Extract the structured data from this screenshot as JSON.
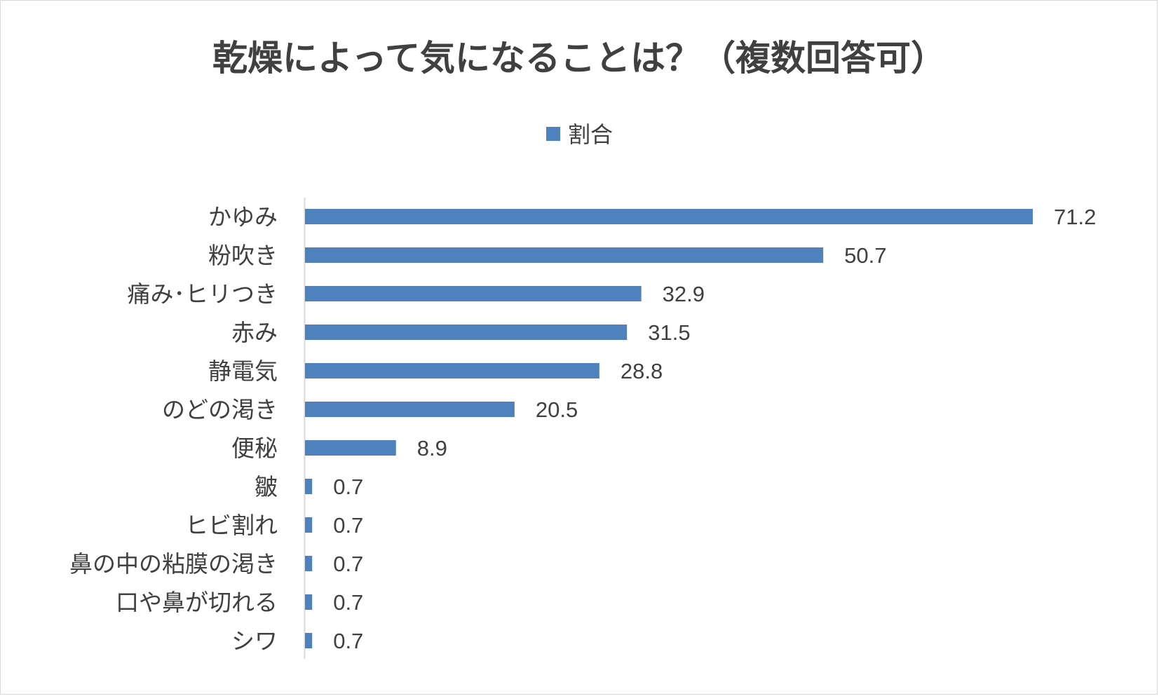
{
  "chart_data": {
    "type": "bar",
    "orientation": "horizontal",
    "title": "乾燥によって気になることは？（複数回答可）",
    "legend": [
      "割合"
    ],
    "legend_position": "top",
    "series": [
      {
        "name": "割合",
        "color": "#4f81bd",
        "values": [
          71.2,
          50.7,
          32.9,
          31.5,
          28.8,
          20.5,
          8.9,
          0.7,
          0.7,
          0.7,
          0.7,
          0.7
        ]
      }
    ],
    "categories": [
      "かゆみ",
      "粉吹き",
      "痛み･ヒリつき",
      "赤み",
      "静電気",
      "のどの渇き",
      "便秘",
      "皺",
      "ヒビ割れ",
      "鼻の中の粘膜の渇き",
      "口や鼻が切れる",
      "シワ"
    ],
    "value_labels": [
      "71.2",
      "50.7",
      "32.9",
      "31.5",
      "28.8",
      "20.5",
      "8.9",
      "0.7",
      "0.7",
      "0.7",
      "0.7",
      "0.7"
    ],
    "xlim": [
      0,
      80
    ],
    "grid": false
  }
}
